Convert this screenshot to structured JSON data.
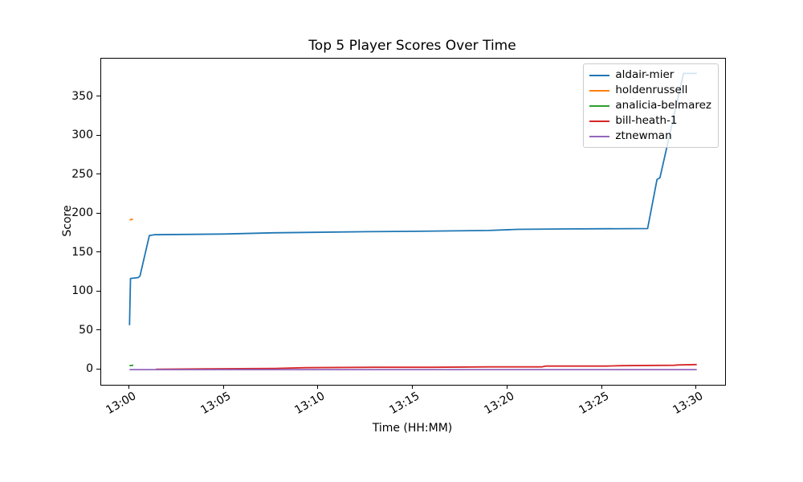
{
  "figure": {
    "title": "Top 5 Player Scores Over Time",
    "xlabel": "Time (HH:MM)",
    "ylabel": "Score",
    "background": "#ffffff"
  },
  "chart_data": {
    "type": "line",
    "title": "Top 5 Player Scores Over Time",
    "xlabel": "Time (HH:MM)",
    "ylabel": "Score",
    "x_unit": "minutes after 13:00",
    "xlim": [
      -1.5,
      31.5
    ],
    "ylim": [
      -19.5,
      399
    ],
    "grid": false,
    "legend_position": "upper right",
    "x_ticks": [
      0,
      5,
      10,
      15,
      20,
      25,
      30
    ],
    "x_tick_labels": [
      "13:00",
      "13:05",
      "13:10",
      "13:15",
      "13:20",
      "13:25",
      "13:30"
    ],
    "y_ticks": [
      0,
      50,
      100,
      150,
      200,
      250,
      300,
      350
    ],
    "y_tick_labels": [
      "0",
      "50",
      "100",
      "150",
      "200",
      "250",
      "300",
      "350"
    ],
    "series": [
      {
        "name": "aldair-mier",
        "color": "#1f77b4",
        "points": [
          [
            0,
            57
          ],
          [
            0.05,
            117
          ],
          [
            0.45,
            118
          ],
          [
            0.55,
            120
          ],
          [
            1.05,
            172
          ],
          [
            1.3,
            173
          ],
          [
            5,
            174
          ],
          [
            7.6,
            175.5
          ],
          [
            12.6,
            177
          ],
          [
            15.3,
            177.5
          ],
          [
            19,
            178.5
          ],
          [
            20.5,
            180
          ],
          [
            23,
            180.5
          ],
          [
            27.4,
            181
          ],
          [
            27.9,
            244
          ],
          [
            28.05,
            246
          ],
          [
            29.3,
            380
          ],
          [
            30,
            380
          ]
        ]
      },
      {
        "name": "holdenrussell",
        "color": "#ff7f0e",
        "points": [
          [
            0,
            192
          ],
          [
            0.18,
            193
          ]
        ]
      },
      {
        "name": "analicia-belmarez",
        "color": "#2ca02c",
        "points": [
          [
            0,
            5
          ],
          [
            0.2,
            5.5
          ]
        ]
      },
      {
        "name": "bill-heath-1",
        "color": "#d62728",
        "points": [
          [
            1.4,
            0.5
          ],
          [
            4,
            1
          ],
          [
            7.7,
            1.5
          ],
          [
            9.3,
            2.5
          ],
          [
            13,
            3
          ],
          [
            16,
            3
          ],
          [
            19,
            3.5
          ],
          [
            21.8,
            3.5
          ],
          [
            22,
            4.5
          ],
          [
            25.2,
            4.5
          ],
          [
            26,
            5
          ],
          [
            28.8,
            5.5
          ],
          [
            29,
            6
          ],
          [
            30,
            6.5
          ]
        ]
      },
      {
        "name": "ztnewman",
        "color": "#9467bd",
        "points": [
          [
            0,
            0
          ],
          [
            30,
            0
          ]
        ]
      }
    ]
  }
}
